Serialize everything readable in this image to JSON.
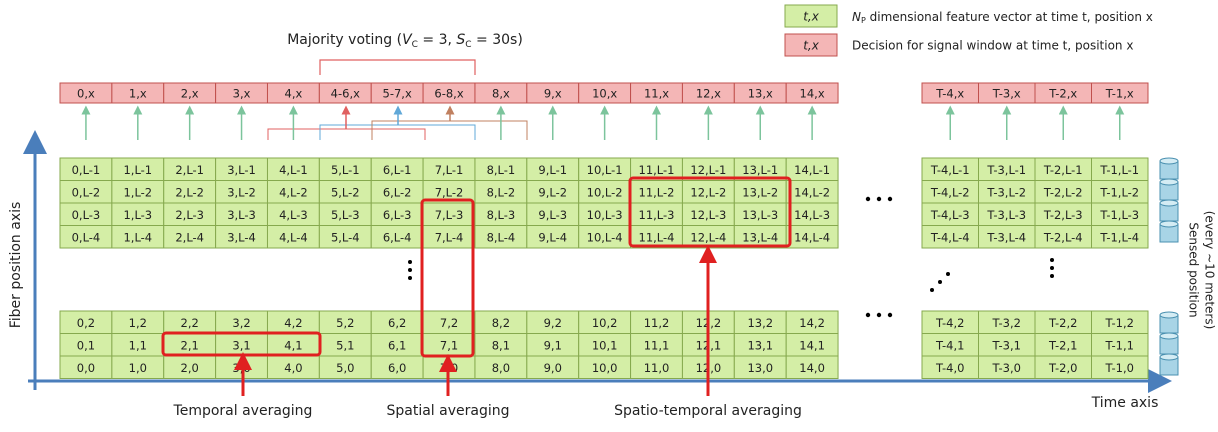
{
  "legend": [
    {
      "box": "t,x",
      "text": [
        "N",
        "P",
        " dimensional feature vector at time t, position x"
      ]
    },
    {
      "box": "t,x",
      "text": "Decision for signal window at time t, position x"
    }
  ],
  "voting_title": [
    "Majority voting (",
    "V",
    "C",
    " = 3, ",
    "S",
    "C",
    " = 30s)"
  ],
  "decisions": {
    "left": [
      "0,x",
      "1,x",
      "2,x",
      "3,x",
      "4,x",
      "4-6,x",
      "5-7,x",
      "6-8,x",
      "8,x",
      "9,x",
      "10,x",
      "11,x",
      "12,x",
      "13,x",
      "14,x"
    ],
    "right": [
      "T-4,x",
      "T-3,x",
      "T-2,x",
      "T-1,x"
    ]
  },
  "grid": {
    "top": [
      {
        "left": [
          "0,L-1",
          "1,L-1",
          "2,L-1",
          "3,L-1",
          "4,L-1",
          "5,L-1",
          "6,L-1",
          "7,L-1",
          "8,L-1",
          "9,L-1",
          "10,L-1",
          "11,L-1",
          "12,L-1",
          "13,L-1",
          "14,L-1"
        ],
        "right": [
          "T-4,L-1",
          "T-3,L-1",
          "T-2,L-1",
          "T-1,L-1"
        ]
      },
      {
        "left": [
          "0,L-2",
          "1,L-2",
          "2,L-2",
          "3,L-2",
          "4,L-2",
          "5,L-2",
          "6,L-2",
          "7,L-2",
          "8,L-2",
          "9,L-2",
          "10,L-2",
          "11,L-2",
          "12,L-2",
          "13,L-2",
          "14,L-2"
        ],
        "right": [
          "T-4,L-2",
          "T-3,L-2",
          "T-2,L-2",
          "T-1,L-2"
        ]
      },
      {
        "left": [
          "0,L-3",
          "1,L-3",
          "2,L-3",
          "3,L-3",
          "4,L-3",
          "5,L-3",
          "6,L-3",
          "7,L-3",
          "8,L-3",
          "9,L-3",
          "10,L-3",
          "11,L-3",
          "12,L-3",
          "13,L-3",
          "14,L-3"
        ],
        "right": [
          "T-4,L-3",
          "T-3,L-3",
          "T-2,L-3",
          "T-1,L-3"
        ]
      },
      {
        "left": [
          "0,L-4",
          "1,L-4",
          "2,L-4",
          "3,L-4",
          "4,L-4",
          "5,L-4",
          "6,L-4",
          "7,L-4",
          "8,L-4",
          "9,L-4",
          "10,L-4",
          "11,L-4",
          "12,L-4",
          "13,L-4",
          "14,L-4"
        ],
        "right": [
          "T-4,L-4",
          "T-3,L-4",
          "T-2,L-4",
          "T-1,L-4"
        ]
      }
    ],
    "bottom": [
      {
        "left": [
          "0,2",
          "1,2",
          "2,2",
          "3,2",
          "4,2",
          "5,2",
          "6,2",
          "7,2",
          "8,2",
          "9,2",
          "10,2",
          "11,2",
          "12,2",
          "13,2",
          "14,2"
        ],
        "right": [
          "T-4,2",
          "T-3,2",
          "T-2,2",
          "T-1,2"
        ]
      },
      {
        "left": [
          "0,1",
          "1,1",
          "2,1",
          "3,1",
          "4,1",
          "5,1",
          "6,1",
          "7,1",
          "8,1",
          "9,1",
          "10,1",
          "11,1",
          "12,1",
          "13,1",
          "14,1"
        ],
        "right": [
          "T-4,1",
          "T-3,1",
          "T-2,1",
          "T-1,1"
        ]
      },
      {
        "left": [
          "0,0",
          "1,0",
          "2,0",
          "3,0",
          "4,0",
          "5,0",
          "6,0",
          "7,0",
          "8,0",
          "9,0",
          "10,0",
          "11,0",
          "12,0",
          "13,0",
          "14,0"
        ],
        "right": [
          "T-4,0",
          "T-3,0",
          "T-2,0",
          "T-1,0"
        ]
      }
    ]
  },
  "labels": {
    "temporal": "Temporal averaging",
    "spatial": "Spatial averaging",
    "spatiotemporal": "Spatio-temporal averaging"
  },
  "axes": {
    "y": "Fiber position axis",
    "x": "Time axis"
  },
  "sensed": [
    "Sensed position",
    "(every ~10 meters)"
  ]
}
